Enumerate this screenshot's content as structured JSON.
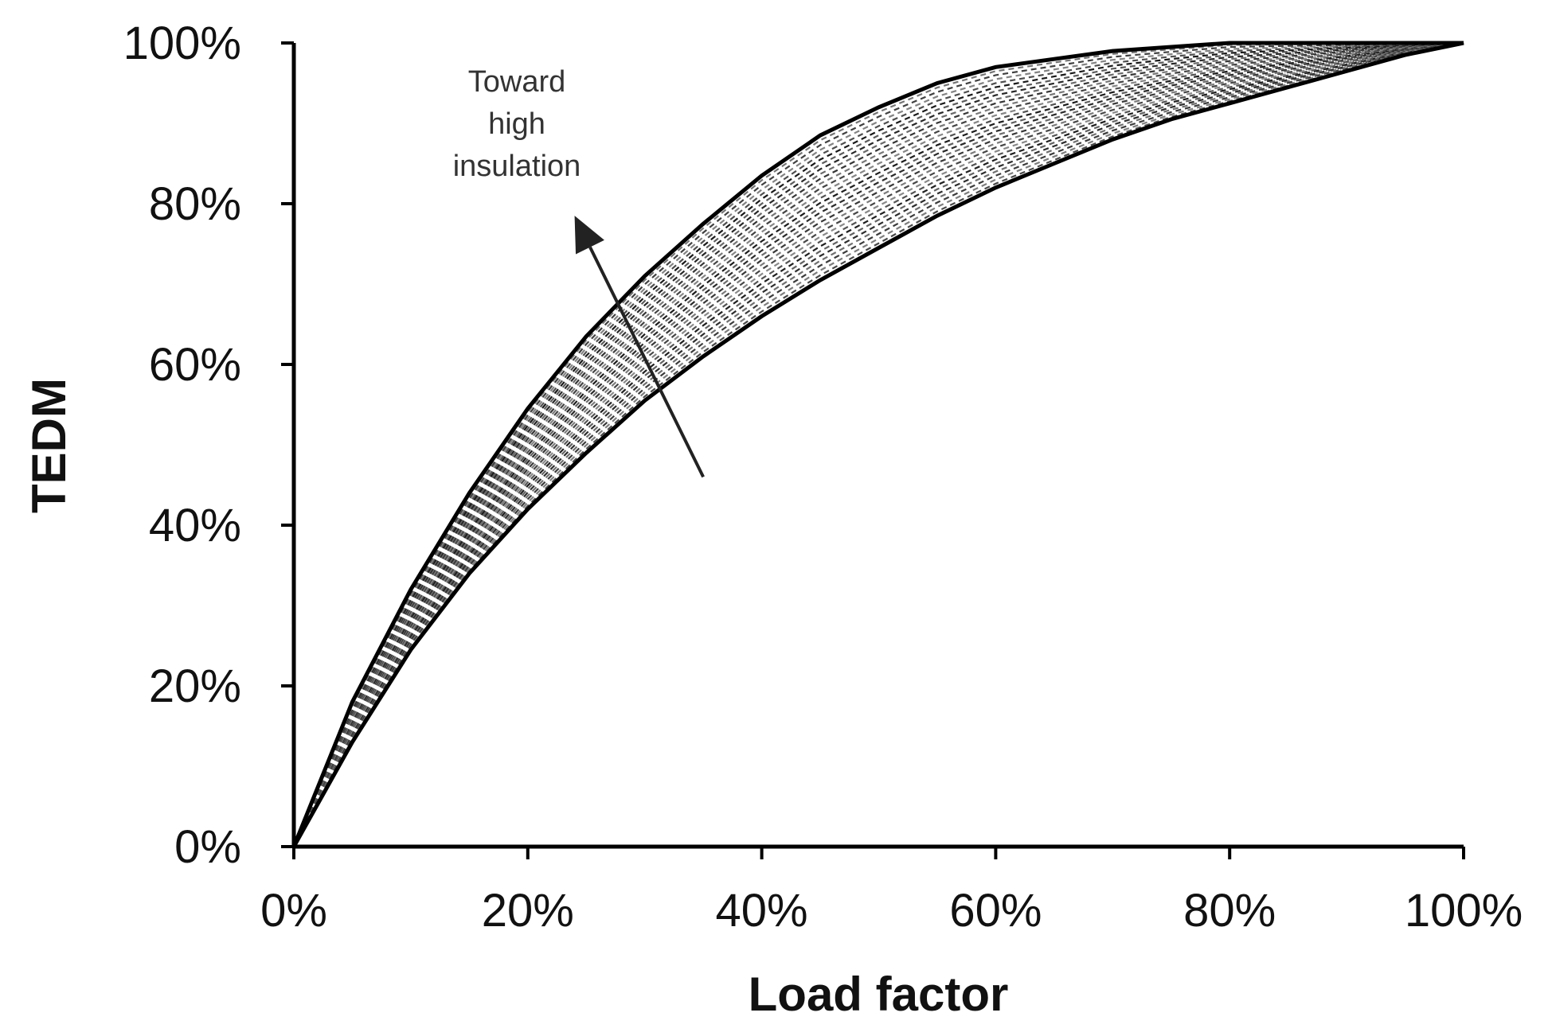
{
  "chart_data": {
    "type": "line",
    "xlabel": "Load factor",
    "ylabel": "TEDM",
    "xlim": [
      0,
      100
    ],
    "ylim": [
      0,
      100
    ],
    "x_ticks": [
      "0%",
      "20%",
      "40%",
      "60%",
      "80%",
      "100%"
    ],
    "y_ticks": [
      "0%",
      "20%",
      "40%",
      "60%",
      "80%",
      "100%"
    ],
    "grid": false,
    "legend": "none",
    "annotation": {
      "lines": [
        "Toward",
        "high",
        "insulation"
      ],
      "arrow_from": [
        35,
        46
      ],
      "arrow_to": [
        24,
        78.5
      ]
    },
    "x": [
      0,
      5,
      10,
      15,
      20,
      25,
      30,
      35,
      40,
      45,
      50,
      55,
      60,
      65,
      70,
      75,
      80,
      85,
      90,
      95,
      100
    ],
    "series": [
      {
        "style": "solid",
        "values": [
          0,
          18,
          32,
          44,
          54.5,
          63.5,
          71,
          77.5,
          83.5,
          88.5,
          92,
          95,
          97,
          98,
          99,
          99.5,
          100,
          100,
          100,
          100,
          100
        ]
      },
      {
        "style": "solid",
        "values": [
          0,
          13,
          24.5,
          34,
          42,
          49,
          55.5,
          61,
          66,
          70.5,
          74.5,
          78.5,
          82,
          85,
          88,
          90.5,
          92.5,
          94.5,
          96.5,
          98.5,
          100
        ]
      }
    ],
    "band_curves": 30,
    "band_style": "dashed"
  }
}
